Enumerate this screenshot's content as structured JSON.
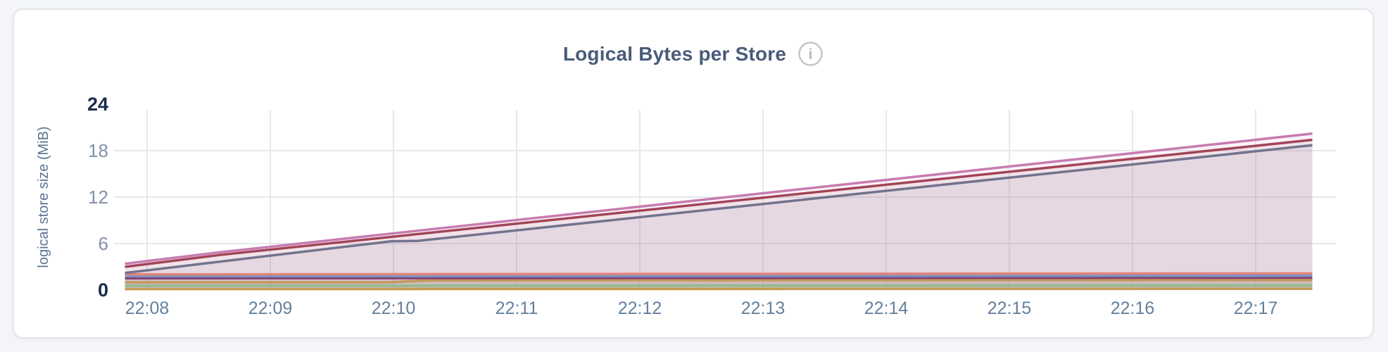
{
  "header": {
    "title": "Logical Bytes per Store",
    "info_icon": "info-circle-icon",
    "info_glyph": "i"
  },
  "theme": {
    "page_bg": "#f3f5f9",
    "card_bg": "#ffffff",
    "card_border": "#e4e5e9",
    "title_color": "#4a5b78",
    "grid_color": "#e7e8eb",
    "y_major_tick_color": "#1b2b4e",
    "y_minor_tick_color": "#8292ab",
    "x_tick_color": "#64809e",
    "y_axis_label_color": "#5a7492",
    "info_icon_color": "#c3c6cc",
    "info_glyph_color": "#b4b8bf"
  },
  "chart_data": {
    "type": "area",
    "title": "Logical Bytes per Store",
    "xlabel": "",
    "ylabel": "logical store size (MiB)",
    "unit": "MiB",
    "ylim": [
      0,
      24
    ],
    "yticks": [
      0,
      6,
      12,
      18,
      24
    ],
    "y_major_ticks": [
      0,
      24
    ],
    "ygrid_values": [
      6,
      12,
      18
    ],
    "xticks": [
      {
        "minute": 8,
        "label": "22:08"
      },
      {
        "minute": 9,
        "label": "22:09"
      },
      {
        "minute": 10,
        "label": "22:10"
      },
      {
        "minute": 11,
        "label": "22:11"
      },
      {
        "minute": 12,
        "label": "22:12"
      },
      {
        "minute": 13,
        "label": "22:13"
      },
      {
        "minute": 14,
        "label": "22:14"
      },
      {
        "minute": 15,
        "label": "22:15"
      },
      {
        "minute": 16,
        "label": "22:16"
      },
      {
        "minute": 17,
        "label": "22:17"
      }
    ],
    "x_domain_minutes": [
      7.82,
      17.46
    ],
    "grid": true,
    "legend_position": "none",
    "fill_opacity": 0.09,
    "stroke_width": 3.5,
    "series": [
      {
        "id": "series-1",
        "color": "#c77cb0",
        "points": [
          [
            7.82,
            3.4
          ],
          [
            8.6,
            4.9
          ],
          [
            17.46,
            20.2
          ]
        ]
      },
      {
        "id": "series-2",
        "color": "#a24458",
        "points": [
          [
            7.82,
            3.0
          ],
          [
            8.6,
            4.55
          ],
          [
            17.46,
            19.4
          ]
        ]
      },
      {
        "id": "series-3",
        "color": "#71748e",
        "points": [
          [
            7.82,
            2.2
          ],
          [
            9.98,
            6.3
          ],
          [
            10.2,
            6.35
          ],
          [
            17.46,
            18.7
          ]
        ]
      },
      {
        "id": "series-4",
        "color": "#e2837b",
        "points": [
          [
            7.82,
            2.02
          ],
          [
            17.46,
            2.15
          ]
        ]
      },
      {
        "id": "series-5",
        "color": "#7395c6",
        "points": [
          [
            7.82,
            1.78
          ],
          [
            17.46,
            1.85
          ]
        ]
      },
      {
        "id": "series-6",
        "color": "#8a3d70",
        "points": [
          [
            7.82,
            1.52
          ],
          [
            17.46,
            1.6
          ]
        ]
      },
      {
        "id": "series-7",
        "color": "#c19a5b",
        "points": [
          [
            7.82,
            1.0
          ],
          [
            9.95,
            1.0
          ],
          [
            10.3,
            1.25
          ],
          [
            17.46,
            1.3
          ]
        ]
      },
      {
        "id": "series-8",
        "color": "#8fbe8d",
        "points": [
          [
            7.82,
            0.55
          ],
          [
            17.46,
            0.6
          ]
        ]
      },
      {
        "id": "series-9",
        "color": "#c59b53",
        "points": [
          [
            7.82,
            0.12
          ],
          [
            17.46,
            0.16
          ]
        ]
      }
    ]
  }
}
